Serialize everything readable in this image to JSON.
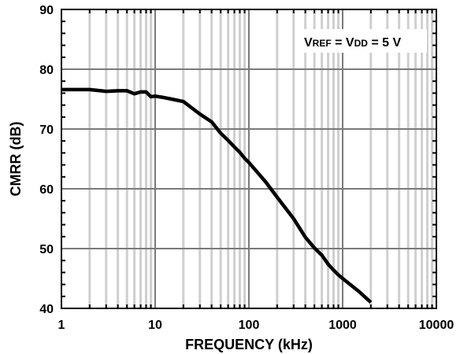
{
  "chart_data": {
    "type": "line",
    "title": "",
    "xlabel": "FREQUENCY (kHz)",
    "ylabel": "CMRR (dB)",
    "x_scale": "log",
    "xlim": [
      1,
      10000
    ],
    "ylim": [
      40,
      90
    ],
    "x_ticks": [
      "1",
      "10",
      "100",
      "1000",
      "10000"
    ],
    "y_ticks": [
      "40",
      "50",
      "60",
      "70",
      "80",
      "90"
    ],
    "grid": true,
    "annotation": {
      "parts": [
        {
          "text": "V",
          "size": "normal"
        },
        {
          "text": "REF",
          "size": "small"
        },
        {
          "text": " = V",
          "size": "normal"
        },
        {
          "text": "DD",
          "size": "small"
        },
        {
          "text": " = 5 V",
          "size": "normal"
        }
      ]
    },
    "series": [
      {
        "x": [
          1,
          2,
          3,
          4,
          5,
          6,
          7,
          8,
          9,
          10,
          12,
          15,
          20,
          30,
          40,
          50,
          60,
          70,
          80,
          90,
          100,
          150,
          200,
          300,
          400,
          500,
          600,
          700,
          800,
          900,
          1000,
          1500,
          2000
        ],
        "y": [
          76.6,
          76.6,
          76.3,
          76.4,
          76.4,
          75.9,
          76.2,
          76.2,
          75.4,
          75.5,
          75.3,
          75.0,
          74.6,
          72.5,
          71.2,
          69.3,
          68.1,
          67.0,
          66.1,
          65.1,
          64.4,
          61.2,
          58.6,
          55.0,
          51.9,
          50.1,
          48.9,
          47.4,
          46.4,
          45.6,
          45.0,
          42.8,
          41.0
        ],
        "color": "#000000"
      }
    ]
  }
}
